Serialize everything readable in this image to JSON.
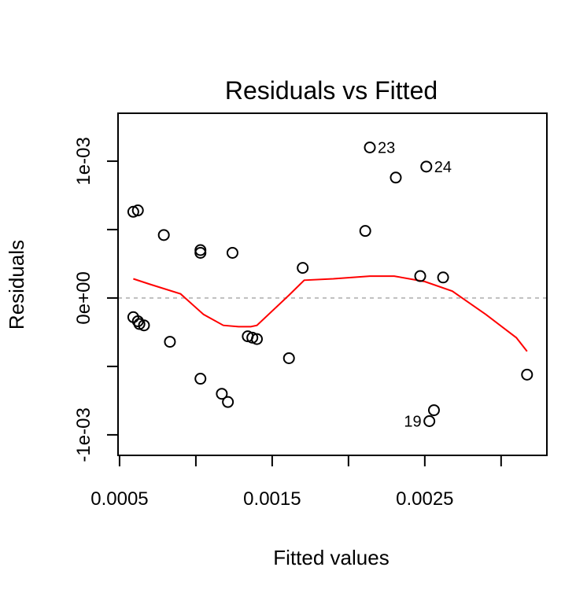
{
  "chart_data": {
    "type": "scatter",
    "title": "Residuals vs Fitted",
    "xlabel": "Fitted values",
    "ylabel": "Residuals",
    "xlim": [
      0.00049,
      0.0033
    ],
    "ylim": [
      -0.00115,
      0.00135
    ],
    "x_ticks": [
      {
        "value": 0.0005,
        "label": "0.0005"
      },
      {
        "value": 0.001,
        "label": ""
      },
      {
        "value": 0.0015,
        "label": "0.0015"
      },
      {
        "value": 0.002,
        "label": ""
      },
      {
        "value": 0.0025,
        "label": "0.0025"
      },
      {
        "value": 0.003,
        "label": ""
      }
    ],
    "y_ticks": [
      {
        "value": -0.001,
        "label": "-1e-03"
      },
      {
        "value": -0.0005,
        "label": ""
      },
      {
        "value": 0,
        "label": "0e+00"
      },
      {
        "value": 0.0005,
        "label": ""
      },
      {
        "value": 0.001,
        "label": "1e-03"
      }
    ],
    "grid": false,
    "reference_line_y": 0,
    "points": [
      {
        "x": 0.00059,
        "y": 0.00063
      },
      {
        "x": 0.00062,
        "y": 0.00064
      },
      {
        "x": 0.00079,
        "y": 0.00046
      },
      {
        "x": 0.00059,
        "y": -0.00014
      },
      {
        "x": 0.00062,
        "y": -0.00017
      },
      {
        "x": 0.00063,
        "y": -0.00019
      },
      {
        "x": 0.00066,
        "y": -0.0002
      },
      {
        "x": 0.00083,
        "y": -0.00032
      },
      {
        "x": 0.00103,
        "y": 0.00035
      },
      {
        "x": 0.00103,
        "y": 0.00033
      },
      {
        "x": 0.00103,
        "y": -0.00059
      },
      {
        "x": 0.00117,
        "y": -0.0007
      },
      {
        "x": 0.00121,
        "y": -0.00076
      },
      {
        "x": 0.00124,
        "y": 0.00033
      },
      {
        "x": 0.00134,
        "y": -0.00028
      },
      {
        "x": 0.00137,
        "y": -0.00029
      },
      {
        "x": 0.0014,
        "y": -0.0003
      },
      {
        "x": 0.00161,
        "y": -0.00044
      },
      {
        "x": 0.0017,
        "y": 0.00022
      },
      {
        "x": 0.00211,
        "y": 0.00049
      },
      {
        "x": 0.00214,
        "y": 0.0011,
        "label": "23"
      },
      {
        "x": 0.00231,
        "y": 0.00088
      },
      {
        "x": 0.00251,
        "y": 0.00096,
        "label": "24"
      },
      {
        "x": 0.00247,
        "y": 0.00016
      },
      {
        "x": 0.00262,
        "y": 0.00015
      },
      {
        "x": 0.00256,
        "y": -0.00082
      },
      {
        "x": 0.00253,
        "y": -0.0009,
        "label": "19"
      },
      {
        "x": 0.00317,
        "y": -0.00056
      }
    ],
    "smoother": {
      "color": "#ff0000",
      "x": [
        0.00059,
        0.0007,
        0.0009,
        0.00105,
        0.00118,
        0.00128,
        0.00136,
        0.0014,
        0.00161,
        0.00171,
        0.0019,
        0.00214,
        0.0023,
        0.0025,
        0.00268,
        0.0029,
        0.0031,
        0.00317
      ],
      "y": [
        0.00014,
        0.0001,
        3e-05,
        -0.00012,
        -0.0002,
        -0.00021,
        -0.00021,
        -0.0002,
        2e-05,
        0.00013,
        0.00014,
        0.00016,
        0.00016,
        0.00012,
        5e-05,
        -0.00012,
        -0.00029,
        -0.00039
      ]
    },
    "point_color": "#000000",
    "reference_color": "#bebebe"
  }
}
